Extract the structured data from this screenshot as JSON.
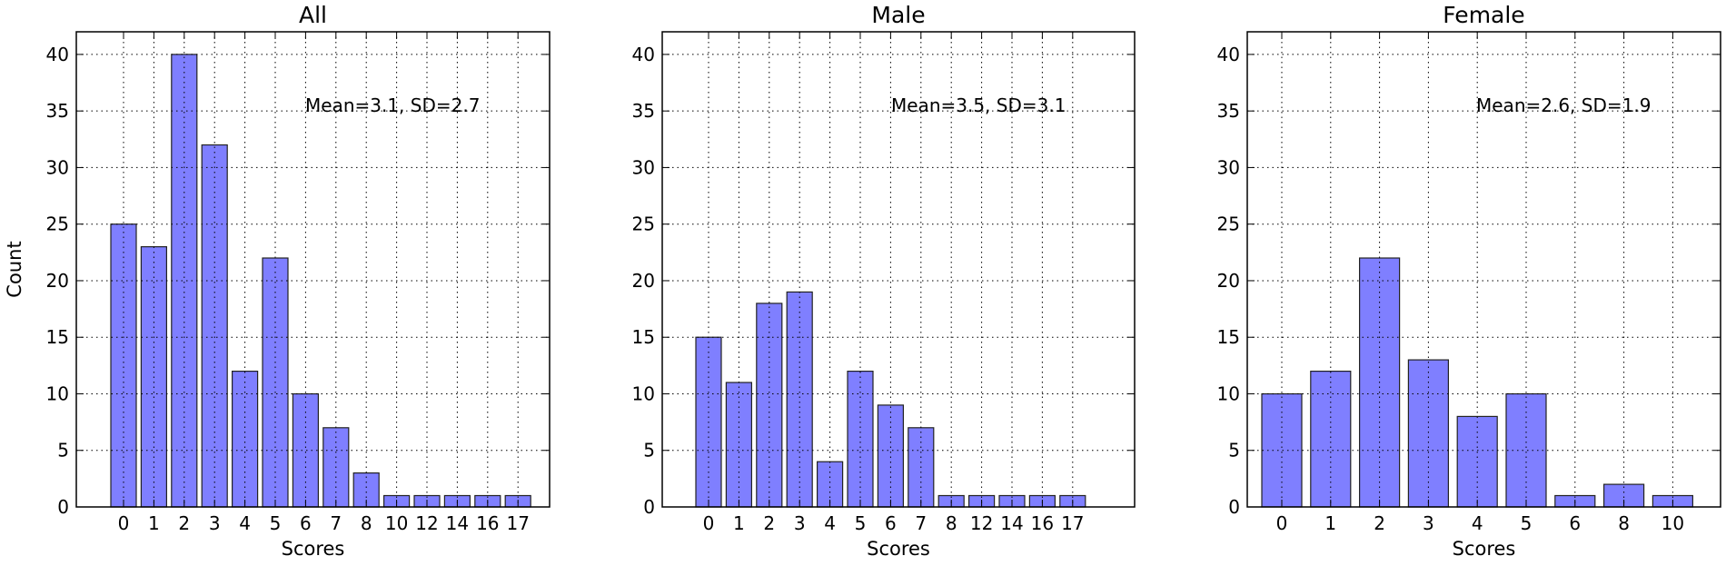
{
  "chart_data": [
    {
      "type": "bar",
      "title": "All",
      "xlabel": "Scores",
      "ylabel": "Count",
      "ylim": [
        0,
        42
      ],
      "yticks": [
        0,
        5,
        10,
        15,
        20,
        25,
        30,
        35,
        40
      ],
      "categories": [
        "0",
        "1",
        "2",
        "3",
        "4",
        "5",
        "6",
        "7",
        "8",
        "10",
        "12",
        "14",
        "16",
        "17"
      ],
      "values": [
        25,
        23,
        40,
        32,
        12,
        22,
        10,
        7,
        3,
        1,
        1,
        1,
        1,
        1
      ],
      "annotation": "Mean=3.1, SD=2.7",
      "grid": true,
      "bar_color": "#7f7fff"
    },
    {
      "type": "bar",
      "title": "Male",
      "xlabel": "Scores",
      "ylabel": "",
      "ylim": [
        0,
        42
      ],
      "yticks": [
        0,
        5,
        10,
        15,
        20,
        25,
        30,
        35,
        40
      ],
      "categories": [
        "0",
        "1",
        "2",
        "3",
        "4",
        "5",
        "6",
        "7",
        "8",
        "12",
        "14",
        "16",
        "17"
      ],
      "values": [
        15,
        11,
        18,
        19,
        4,
        12,
        9,
        7,
        1,
        1,
        1,
        1,
        1
      ],
      "annotation": "Mean=3.5, SD=3.1",
      "grid": true,
      "bar_color": "#7f7fff"
    },
    {
      "type": "bar",
      "title": "Female",
      "xlabel": "Scores",
      "ylabel": "",
      "ylim": [
        0,
        42
      ],
      "yticks": [
        0,
        5,
        10,
        15,
        20,
        25,
        30,
        35,
        40
      ],
      "categories": [
        "0",
        "1",
        "2",
        "3",
        "4",
        "5",
        "6",
        "8",
        "10"
      ],
      "values": [
        10,
        12,
        22,
        13,
        8,
        10,
        1,
        2,
        1
      ],
      "annotation": "Mean=2.6, SD=1.9",
      "grid": true,
      "bar_color": "#7f7fff"
    }
  ]
}
